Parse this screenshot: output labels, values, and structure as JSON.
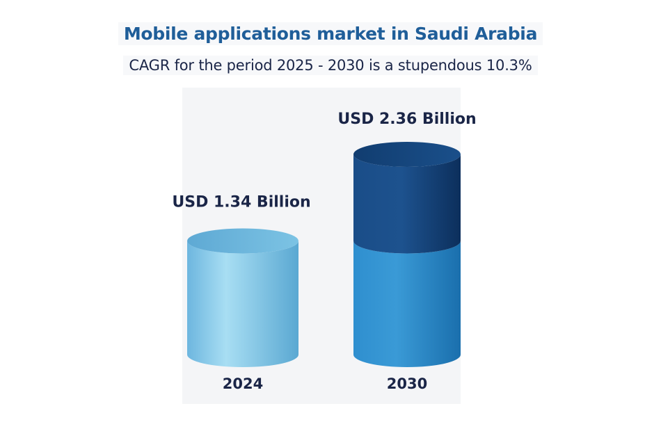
{
  "chart_data": {
    "type": "bar",
    "title": "Mobile applications market in Saudi Arabia",
    "subtitle": "CAGR for the period 2025 - 2030 is a stupendous 10.3%",
    "categories": [
      "2024",
      "2030"
    ],
    "values": [
      1.34,
      2.36
    ],
    "data_labels": [
      "USD 1.34 Billion",
      "USD 2.36 Billion"
    ],
    "unit": "USD Billion",
    "ylim": [
      0,
      2.36
    ],
    "grid": false,
    "colors": {
      "title": "#1f5e99",
      "label": "#1a2547",
      "bar_2024_light": "#a8def3",
      "bar_2024_mid": "#7cc3e4",
      "bar_2024_dark": "#5aa8d2",
      "bar_2030_lower_light": "#3a9ad6",
      "bar_2030_lower_dark": "#1a6fad",
      "bar_2030_upper_light": "#1d528e",
      "bar_2030_upper_dark": "#0c2f5c"
    }
  }
}
